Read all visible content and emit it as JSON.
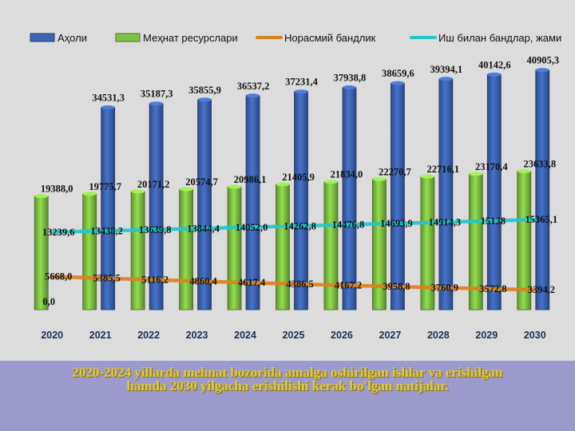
{
  "caption": "2020-2024 yillarda mehnat bozorida amalga oshirilgan ishlar va erishilgan hamda 2030 yilgacha erishilishi kerak bo'lgan natijalar.",
  "chart_data": {
    "type": "bar",
    "categories": [
      "2020",
      "2021",
      "2022",
      "2023",
      "2024",
      "2025",
      "2026",
      "2027",
      "2028",
      "2029",
      "2030"
    ],
    "series": [
      {
        "name": "Аҳоли",
        "type": "bar",
        "color": "#3d64b4",
        "values": [
          0,
          34531.3,
          35187.3,
          35855.9,
          36537.2,
          37231.4,
          37938.8,
          38659.6,
          39394.1,
          40142.6,
          40905.3
        ],
        "labels": [
          "0,0",
          "34531,3",
          "35187,3",
          "35855,9",
          "36537,2",
          "37231,4",
          "37938,8",
          "38659,6",
          "39394,1",
          "40142,6",
          "40905,3"
        ]
      },
      {
        "name": "Меҳнат ресурслари",
        "type": "bar",
        "color": "#7fc242",
        "values": [
          19388.0,
          19775.7,
          20171.2,
          20574.7,
          20986.1,
          21405.9,
          21834.0,
          22270.7,
          22716.1,
          23170.4,
          23633.8
        ],
        "labels": [
          "19388,0",
          "19775,7",
          "20171,2",
          "20574,7",
          "20986,1",
          "21405,9",
          "21834,0",
          "22270,7",
          "22716,1",
          "23170,4",
          "23633,8"
        ]
      },
      {
        "name": "Норасмий бандлик",
        "type": "line",
        "color": "#d9831e",
        "values": [
          5668.0,
          5385.5,
          5116.2,
          4860.4,
          4617.4,
          4386.5,
          4167.2,
          3958.8,
          3760.9,
          3572.8,
          3394.2
        ],
        "labels": [
          "5668,0",
          "5385,5",
          "5116,2",
          "4860,4",
          "4617,4",
          "4386,5",
          "4167,2",
          "3958,8",
          "3760,9",
          "3572,8",
          "3394,2"
        ]
      },
      {
        "name": "Иш билан бандлар, жами",
        "type": "line",
        "color": "#22c7c9",
        "values": [
          13239.6,
          13438.2,
          13639.8,
          13844.4,
          14052.0,
          14262.8,
          14476.8,
          14693.9,
          14914.3,
          15138.0,
          15365.1
        ],
        "labels": [
          "13239,6",
          "13438,2",
          "13639,8",
          "13844,4",
          "14052,0",
          "14262,8",
          "14476,8",
          "14693,9",
          "14914,3",
          "15138",
          "15365,1"
        ]
      }
    ],
    "ylim": [
      0,
      44000
    ],
    "grid": false,
    "legend": "top"
  }
}
